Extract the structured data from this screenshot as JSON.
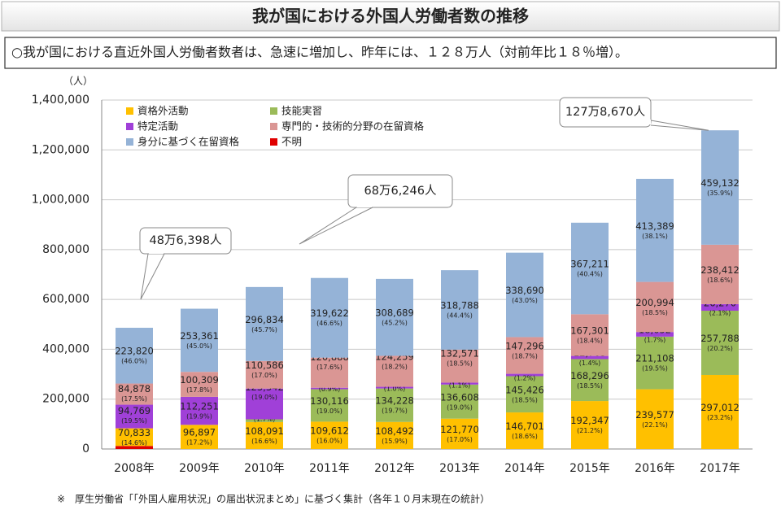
{
  "chart_data": {
    "type": "stacked_bar",
    "title": "我が国における外国人労働者数の推移",
    "subtitle": "○我が国における直近外国人労働者数者は、急速に増加し、昨年には、１２８万人（対前年比１８％増）。",
    "y_unit": "（人）",
    "footnote": "※　厚生労働省「「外国人雇用状況」の届出状況まとめ」に基づく集計（各年１０月末現在の統計）",
    "annotations": [
      "48万6,398人",
      "68万6,246人",
      "127万8,670人"
    ],
    "categories": [
      "2008年",
      "2009年",
      "2010年",
      "2011年",
      "2012年",
      "2013年",
      "2014年",
      "2015年",
      "2016年",
      "2017年"
    ],
    "ylim": [
      0,
      1400000
    ],
    "yticks": [
      0,
      {
        "value": 200000,
        "label": "200,000"
      },
      {
        "value": 400000,
        "label": "400,000"
      },
      {
        "value": 600000,
        "label": "600,000"
      },
      {
        "value": 800000,
        "label": "800,000"
      },
      {
        "value": 1000000,
        "label": "1,000,000"
      },
      {
        "value": 1200000,
        "label": "1,200,000"
      },
      {
        "value": 1400000,
        "label": "1,400,000"
      }
    ],
    "grid": true,
    "series": [
      {
        "name": "不明",
        "color": "#e00000",
        "values": [
          12098,
          null,
          null,
          null,
          null,
          null,
          null,
          null,
          null,
          null
        ],
        "value_labels": [
          null,
          null,
          null,
          null,
          null,
          null,
          null,
          null,
          null,
          null
        ],
        "share_labels": [
          null,
          null,
          null,
          null,
          null,
          null,
          null,
          null,
          null,
          null
        ]
      },
      {
        "name": "資格外活動",
        "color": "#ffc000",
        "values": [
          70833,
          96897,
          108091,
          109612,
          108492,
          121770,
          146701,
          192347,
          239577,
          297012
        ],
        "value_labels": [
          "70,833",
          "96,897",
          "108,091",
          "109,612",
          "108,492",
          "121,770",
          "146,701",
          "192,347",
          "239,577",
          "297,012"
        ],
        "share_labels": [
          "(14.6%)",
          "(17.2%)",
          "(16.6%)",
          "(16.0%)",
          "(15.9%)",
          "(17.0%)",
          "(18.6%)",
          "(21.2%)",
          "(22.1%)",
          "(23.2%)"
        ]
      },
      {
        "name": "技能実習",
        "color": "#9bbb59",
        "values": [
          null,
          null,
          11026,
          130116,
          134228,
          136608,
          145426,
          168296,
          211108,
          257788
        ],
        "value_labels": [
          null,
          null,
          "11,026",
          "130,116",
          "134,228",
          "136,608",
          "145,426",
          "168,296",
          "211,108",
          "257,788"
        ],
        "share_labels": [
          null,
          null,
          "(1.7%)",
          "(19.0%)",
          "(19.7%)",
          "(19.0%)",
          "(18.5%)",
          "(18.5%)",
          "(19.5%)",
          "(20.2%)"
        ]
      },
      {
        "name": "特定活動",
        "color": "#a040d8",
        "values": [
          94769,
          112251,
          123342,
          5939,
          6763,
          7735,
          9475,
          12705,
          18652,
          26270
        ],
        "value_labels": [
          "94,769",
          "112,251",
          "123,342",
          "5,939",
          "6,763",
          "7,735",
          "9,475",
          "12,705",
          "18,652",
          "26,270"
        ],
        "share_labels": [
          "(19.5%)",
          "(19.9%)",
          "(19.0%)",
          "(0.9%)",
          "(1.0%)",
          "(1.1%)",
          "(1.2%)",
          "(1.4%)",
          "(1.7%)",
          "(2.1%)"
        ]
      },
      {
        "name": "専門的・技術的分野の在留資格",
        "color": "#da9694",
        "values": [
          84878,
          100309,
          110586,
          120888,
          124259,
          132571,
          147296,
          167301,
          200994,
          238412
        ],
        "value_labels": [
          "84,878",
          "100,309",
          "110,586",
          "120,888",
          "124,259",
          "132,571",
          "147,296",
          "167,301",
          "200,994",
          "238,412"
        ],
        "share_labels": [
          "(17.5%)",
          "(17.8%)",
          "(17.0%)",
          "(17.6%)",
          "(18.2%)",
          "(18.5%)",
          "(18.7%)",
          "(18.4%)",
          "(18.5%)",
          "(18.6%)"
        ]
      },
      {
        "name": "身分に基づく在留資格",
        "color": "#95b3d7",
        "values": [
          223820,
          253361,
          296834,
          319622,
          308689,
          318788,
          338690,
          367211,
          413389,
          459132
        ],
        "value_labels": [
          "223,820",
          "253,361",
          "296,834",
          "319,622",
          "308,689",
          "318,788",
          "338,690",
          "367,211",
          "413,389",
          "459,132"
        ],
        "share_labels": [
          "(46.0%)",
          "(45.0%)",
          "(45.7%)",
          "(46.6%)",
          "(45.2%)",
          "(44.4%)",
          "(43.0%)",
          "(40.4%)",
          "(38.1%)",
          "(35.9%)"
        ]
      }
    ]
  }
}
